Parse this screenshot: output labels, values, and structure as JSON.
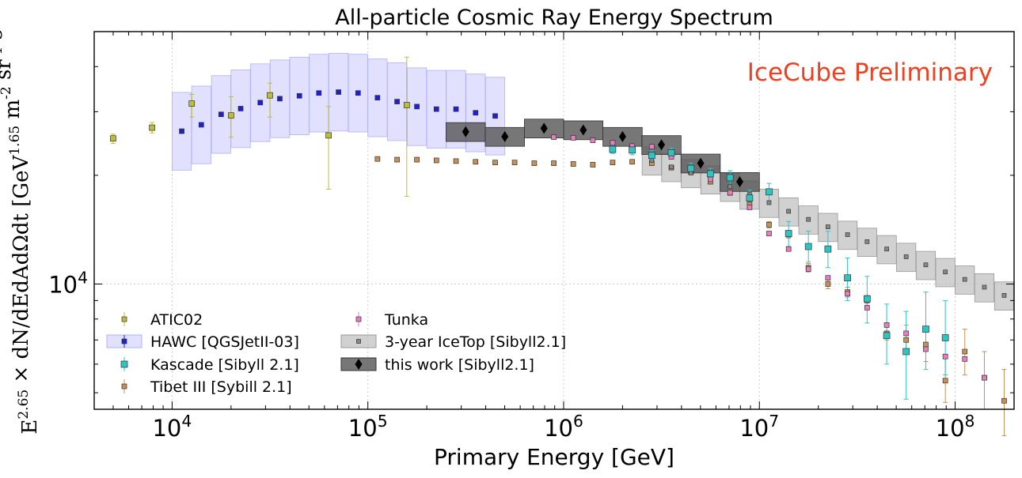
{
  "chart_data": {
    "type": "scatter",
    "title": "All-particle Cosmic Ray Energy Spectrum",
    "annotation": "IceCube Preliminary",
    "xlabel": "Primary Energy [GeV]",
    "ylabel": "E^2.65 × dN/dEdAdΩdt [GeV^1.65 m^-2 sr^-1 s^-1]",
    "xscale": "log",
    "yscale": "log",
    "xlim": [
      4000,
      200000000
    ],
    "ylim": [
      4500,
      50000
    ],
    "grid": true,
    "legend_position": "lower-left",
    "x_tick_labels": [
      "10^4",
      "10^5",
      "10^6",
      "10^7",
      "10^8"
    ],
    "y_tick_labels": [
      "10^4"
    ],
    "colors": {
      "atic": "#bdbd3a",
      "hawc": "#1f1fd4",
      "hawc_band": "#c8c8ff",
      "kascade": "#2ec4c4",
      "tibet": "#c89058",
      "tunka": "#e87ec0",
      "icetop_band": "#b8b8b8",
      "thiswork_band": "#555555",
      "annotation": "#f04020"
    },
    "legend": [
      {
        "key": "atic",
        "label": "ATIC02"
      },
      {
        "key": "hawc",
        "label": "HAWC [QGSJetII-03]"
      },
      {
        "key": "kascade",
        "label": "Kascade [Sibyll 2.1]"
      },
      {
        "key": "tibet",
        "label": "Tibet III [Sybill 2.1]"
      },
      {
        "key": "tunka",
        "label": "Tunka"
      },
      {
        "key": "icetop",
        "label": "3-year IceTop [Sibyll2.1]"
      },
      {
        "key": "thiswork",
        "label": "this work [Sibyll2.1]"
      }
    ],
    "series": [
      {
        "key": "atic",
        "name": "ATIC02",
        "points": [
          [
            5000,
            25300,
            24500,
            26000
          ],
          [
            7900,
            27100,
            26200,
            28000
          ],
          [
            12600,
            31600,
            29000,
            33500
          ],
          [
            20000,
            29300,
            25500,
            33000
          ],
          [
            31600,
            33300,
            29000,
            36000
          ],
          [
            63000,
            25800,
            18300,
            31000
          ],
          [
            158000,
            31300,
            17500,
            42500
          ]
        ]
      },
      {
        "key": "hawc",
        "name": "HAWC [QGSJetII-03]",
        "points": [
          [
            11200,
            26500
          ],
          [
            14100,
            27600
          ],
          [
            17800,
            29500
          ],
          [
            22400,
            30600
          ],
          [
            28200,
            31800
          ],
          [
            35500,
            32600
          ],
          [
            44700,
            33200
          ],
          [
            56200,
            33800
          ],
          [
            70800,
            34000
          ],
          [
            89100,
            33800
          ],
          [
            112000,
            32800
          ],
          [
            141000,
            32000
          ],
          [
            178000,
            31000
          ],
          [
            224000,
            30500
          ],
          [
            282000,
            30500
          ],
          [
            355000,
            29800
          ],
          [
            447000,
            29200
          ]
        ]
      },
      {
        "key": "kascade",
        "name": "Kascade [Sibyll 2.1]",
        "points": [
          [
            1780000,
            23600,
            23000,
            24300
          ],
          [
            2240000,
            23500,
            22800,
            24200
          ],
          [
            2820000,
            22700,
            22000,
            23400
          ],
          [
            3550000,
            23100,
            22400,
            23800
          ],
          [
            4470000,
            20900,
            20300,
            21600
          ],
          [
            5620000,
            20200,
            19500,
            20900
          ],
          [
            7080000,
            19700,
            18800,
            20600
          ],
          [
            8910000,
            17300,
            16400,
            18200
          ],
          [
            11200000,
            18000,
            17000,
            19000
          ],
          [
            14100000,
            13800,
            12700,
            14900
          ],
          [
            17800000,
            12700,
            11500,
            14000
          ],
          [
            22400000,
            12500,
            11100,
            14000
          ],
          [
            28200000,
            10400,
            9000,
            11800
          ],
          [
            35500000,
            9100,
            7800,
            10500
          ],
          [
            44700000,
            7200,
            6000,
            8800
          ],
          [
            56200000,
            6500,
            4800,
            8400
          ],
          [
            70800000,
            7500,
            5800,
            9500
          ],
          [
            89100000,
            7100,
            5600,
            9000
          ]
        ]
      },
      {
        "key": "tibet",
        "name": "Tibet III [Sybill 2.1]",
        "points": [
          [
            112000,
            22200,
            21900,
            22500
          ],
          [
            141000,
            22100,
            21800,
            22400
          ],
          [
            178000,
            22100,
            21800,
            22400
          ],
          [
            224000,
            22000,
            21700,
            22300
          ],
          [
            282000,
            21900,
            21600,
            22200
          ],
          [
            355000,
            21800,
            21500,
            22100
          ],
          [
            447000,
            21700,
            21400,
            22000
          ],
          [
            562000,
            21700,
            21400,
            22000
          ],
          [
            708000,
            21600,
            21300,
            21900
          ],
          [
            891000,
            21600,
            21300,
            21900
          ],
          [
            1120000,
            21500,
            21200,
            21800
          ],
          [
            1410000,
            21400,
            21100,
            21700
          ],
          [
            1780000,
            21700,
            21400,
            22000
          ],
          [
            2240000,
            21800,
            21500,
            22100
          ],
          [
            2820000,
            21600,
            21300,
            21900
          ],
          [
            3550000,
            21000,
            20700,
            21300
          ],
          [
            4470000,
            20400,
            20100,
            20700
          ],
          [
            5620000,
            19200,
            18900,
            19500
          ],
          [
            7080000,
            17900,
            17600,
            18200
          ],
          [
            8910000,
            16600,
            16300,
            16900
          ],
          [
            11200000,
            14600,
            14300,
            14900
          ],
          [
            14100000,
            13700,
            13400,
            14000
          ],
          [
            17800000,
            11100,
            10800,
            11400
          ],
          [
            22400000,
            10000,
            9700,
            10300
          ],
          [
            28200000,
            9500,
            9200,
            9800
          ],
          [
            35500000,
            9000,
            8700,
            9300
          ],
          [
            44700000,
            7300,
            7000,
            7600
          ],
          [
            56200000,
            7000,
            6400,
            7700
          ],
          [
            70800000,
            6800,
            6100,
            7600
          ],
          [
            89100000,
            5400,
            4700,
            6300
          ],
          [
            112000000,
            6500,
            5600,
            7500
          ],
          [
            141000000,
            5500,
            4500,
            6500
          ],
          [
            178000000,
            4750,
            3800,
            5800
          ]
        ]
      },
      {
        "key": "tunka",
        "name": "Tunka",
        "points": [
          [
            891000,
            25500
          ],
          [
            1120000,
            25400
          ],
          [
            1410000,
            25000
          ],
          [
            1780000,
            24600
          ],
          [
            2240000,
            24100
          ],
          [
            2820000,
            24000
          ],
          [
            3550000,
            22500
          ],
          [
            4470000,
            21000
          ],
          [
            5620000,
            19500
          ],
          [
            7080000,
            17900
          ],
          [
            8910000,
            16300
          ],
          [
            11200000,
            13800
          ],
          [
            14100000,
            12500
          ],
          [
            17800000,
            11000
          ],
          [
            22400000,
            10400
          ],
          [
            28200000,
            9400
          ],
          [
            35500000,
            8600
          ],
          [
            44700000,
            7700
          ],
          [
            56200000,
            7300
          ],
          [
            70800000,
            6600
          ],
          [
            89100000,
            6300
          ],
          [
            112000000,
            6200
          ],
          [
            141000000,
            5500
          ]
        ]
      },
      {
        "key": "icetop",
        "name": "3-year IceTop [Sibyll2.1]",
        "points": [
          [
            2820000,
            22000
          ],
          [
            3550000,
            21100
          ],
          [
            4470000,
            20300
          ],
          [
            5620000,
            19500
          ],
          [
            7080000,
            18600
          ],
          [
            8910000,
            17700
          ],
          [
            11200000,
            16800
          ],
          [
            14100000,
            15900
          ],
          [
            17800000,
            15100
          ],
          [
            22400000,
            14400
          ],
          [
            28200000,
            13700
          ],
          [
            35500000,
            13100
          ],
          [
            44700000,
            12500
          ],
          [
            56200000,
            11900
          ],
          [
            70800000,
            11300
          ],
          [
            89100000,
            10800
          ],
          [
            112000000,
            10300
          ],
          [
            141000000,
            9800
          ],
          [
            178000000,
            9300
          ]
        ]
      },
      {
        "key": "thiswork",
        "name": "this work [Sibyll2.1]",
        "points": [
          [
            316000,
            26400
          ],
          [
            501000,
            25600
          ],
          [
            794000,
            27000
          ],
          [
            1260000,
            26700
          ],
          [
            2000000,
            25600
          ],
          [
            3160000,
            24300
          ],
          [
            5010000,
            21600
          ],
          [
            7940000,
            19200
          ]
        ]
      }
    ]
  }
}
